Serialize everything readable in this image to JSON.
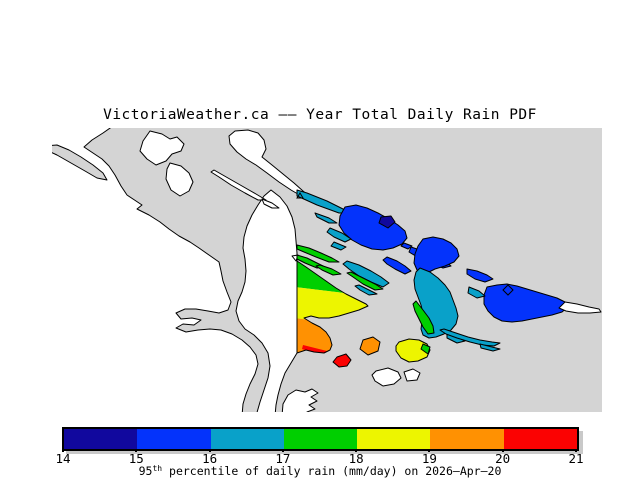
{
  "page": {
    "title": "VictoriaWeather.ca –– Year Total Daily Rain PDF"
  },
  "palette": {
    "background": "#FFFFFF",
    "sea": "#D4D4D4",
    "land": "#FFFFFF",
    "outline": "#000000",
    "shadow": "#C9C9C9",
    "navy": "#11089E",
    "blue": "#0433FB",
    "teal": "#09A1C9",
    "green": "#00CF00",
    "yellow": "#EDF500",
    "orange": "#FF9102",
    "red": "#FB0202"
  },
  "colorbar": {
    "min": 14,
    "max": 21,
    "units": "mm/day",
    "ticks": [
      "14",
      "15",
      "16",
      "17",
      "18",
      "19",
      "20",
      "21"
    ],
    "segments": [
      {
        "range": "14-15",
        "color": "navy"
      },
      {
        "range": "15-16",
        "color": "blue"
      },
      {
        "range": "16-17",
        "color": "teal"
      },
      {
        "range": "17-18",
        "color": "green"
      },
      {
        "range": "18-19",
        "color": "yellow"
      },
      {
        "range": "19-20",
        "color": "orange"
      },
      {
        "range": "20-21",
        "color": "red"
      }
    ],
    "caption": {
      "num": "95",
      "sup": "th",
      "rest": " percentile of daily rain (mm/day) on 2026–Apr–20"
    }
  },
  "map": {
    "legend": "sea is gray; land with no data is white; land colored by 95th-percentile daily rain value",
    "peninsula_gradient": [
      "green",
      "yellow",
      "orange",
      "red"
    ]
  }
}
